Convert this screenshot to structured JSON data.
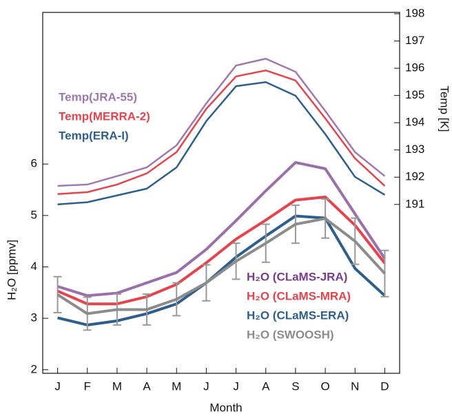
{
  "chart_data": {
    "type": "line",
    "x_label": "Month",
    "y_label": "H₂O [ppmv]",
    "y2_label": "Temp [K]",
    "categories": [
      "J",
      "F",
      "M",
      "A",
      "M",
      "J",
      "J",
      "A",
      "S",
      "O",
      "N",
      "D"
    ],
    "ylim": [
      1.93,
      8.95
    ],
    "yticks": [
      2,
      3,
      4,
      5,
      6
    ],
    "y2lim": [
      184.8,
      198.05
    ],
    "y2ticks": [
      191,
      192,
      193,
      194,
      195,
      196,
      197,
      198
    ],
    "series": [
      {
        "name": "Temp(JRA-55)",
        "color": "#a078b0",
        "axis": "y2",
        "values": [
          191.68,
          191.73,
          192.04,
          192.36,
          193.17,
          194.71,
          196.1,
          196.35,
          195.87,
          194.43,
          192.92,
          192.04
        ]
      },
      {
        "name": "Temp(MERRA-2)",
        "color": "#e5444c",
        "axis": "y2",
        "values": [
          191.38,
          191.45,
          191.73,
          192.14,
          192.92,
          194.51,
          195.7,
          195.92,
          195.55,
          194.16,
          192.69,
          191.68
        ]
      },
      {
        "name": "Temp(ERA-I)",
        "color": "#2d5e8c",
        "axis": "y2",
        "values": [
          191.0,
          191.08,
          191.33,
          191.58,
          192.36,
          194.06,
          195.34,
          195.49,
          194.99,
          193.58,
          192.01,
          191.35
        ]
      },
      {
        "name": "H₂O (CLaMS-JRA)",
        "color": "#9b6fab",
        "label_color": "#7b3a8f",
        "values": [
          3.62,
          3.44,
          3.49,
          3.69,
          3.89,
          4.34,
          4.9,
          5.48,
          6.03,
          5.91,
          5.03,
          4.16
        ]
      },
      {
        "name": "H₂O (CLaMS-MRA)",
        "color": "#e5444c",
        "values": [
          3.53,
          3.28,
          3.28,
          3.42,
          3.66,
          4.08,
          4.54,
          4.91,
          5.3,
          5.36,
          4.81,
          4.07
        ]
      },
      {
        "name": "H₂O (CLaMS-ERA)",
        "color": "#2d5e8c",
        "values": [
          3.01,
          2.87,
          2.95,
          3.09,
          3.28,
          3.69,
          4.19,
          4.6,
          4.99,
          4.95,
          3.97,
          3.44
        ]
      },
      {
        "name": "H₂O (SWOOSH)",
        "color": "#8c8c8c",
        "values": [
          3.46,
          3.09,
          3.17,
          3.17,
          3.37,
          3.69,
          4.11,
          4.46,
          4.83,
          4.94,
          4.5,
          3.87
        ],
        "errors": [
          0.35,
          0.32,
          0.3,
          0.3,
          0.32,
          0.35,
          0.35,
          0.37,
          0.37,
          0.38,
          0.45,
          0.45
        ]
      }
    ]
  }
}
